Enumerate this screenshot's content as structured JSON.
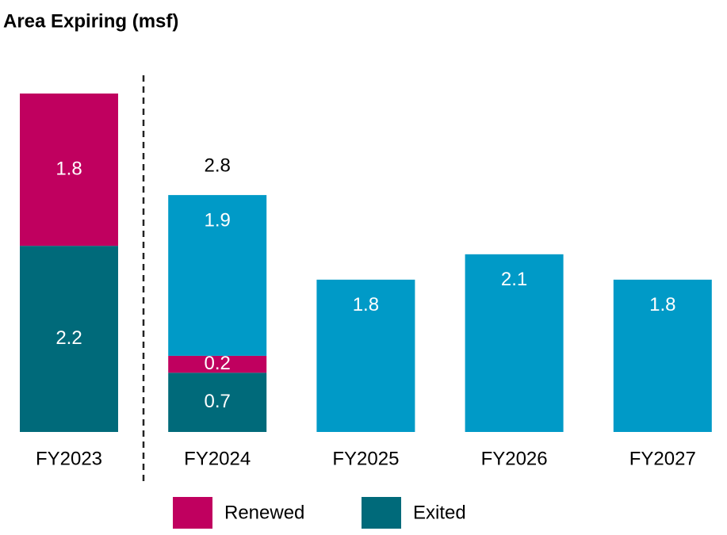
{
  "chart_data": {
    "type": "stacked_bar",
    "title": "Area Expiring (msf)",
    "categories": [
      "FY2023",
      "FY2024",
      "FY2025",
      "FY2026",
      "FY2027"
    ],
    "series": [
      {
        "name": "Exited",
        "color": "#006a7a",
        "values": [
          2.2,
          0.7,
          null,
          null,
          null
        ]
      },
      {
        "name": "Renewed",
        "color": "#c0005f",
        "values": [
          1.8,
          0.2,
          null,
          null,
          null
        ]
      },
      {
        "color": "#009ac7",
        "values": [
          null,
          1.9,
          1.8,
          2.1,
          1.8
        ]
      }
    ],
    "totals": [
      null,
      2.8,
      null,
      null,
      null
    ],
    "ylim": [
      0,
      4
    ]
  }
}
